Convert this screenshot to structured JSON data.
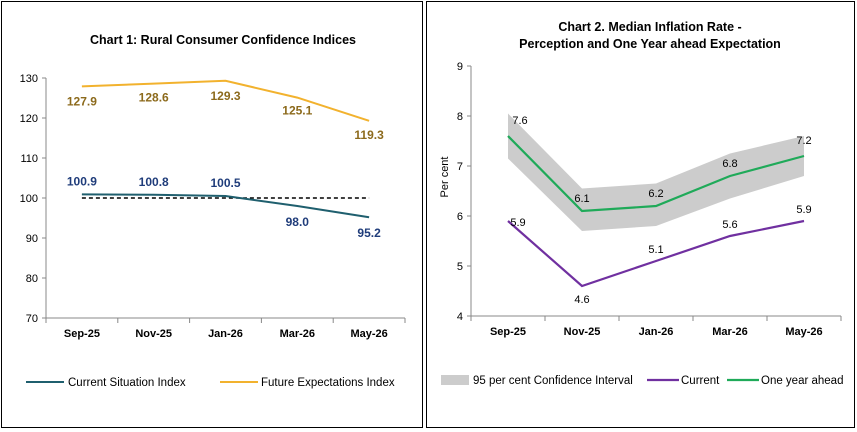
{
  "chart_data": [
    {
      "type": "line",
      "title": "Chart 1: Rural Consumer Confidence Indices",
      "categories": [
        "Sep-25",
        "Nov-25",
        "Jan-26",
        "Mar-26",
        "May-26"
      ],
      "ylim": [
        70,
        130
      ],
      "yticks": [
        70,
        80,
        90,
        100,
        110,
        120,
        130
      ],
      "reference_line": 100,
      "grid": false,
      "legend_position": "bottom",
      "series": [
        {
          "name": "Current Situation Index",
          "values": [
            100.9,
            100.8,
            100.5,
            98.0,
            95.2
          ],
          "labels": [
            "100.9",
            "100.8",
            "100.5",
            "98.0",
            "95.2"
          ],
          "color": "#1f5f6e",
          "label_color": "#1f3c7a"
        },
        {
          "name": "Future Expectations Index",
          "values": [
            127.9,
            128.6,
            129.3,
            125.1,
            119.3
          ],
          "labels": [
            "127.9",
            "128.6",
            "129.3",
            "125.1",
            "119.3"
          ],
          "color": "#f2b22e",
          "label_color": "#8c6a1c"
        }
      ]
    },
    {
      "type": "line",
      "title": "Chart 2. Median Inflation Rate -",
      "subtitle": "Perception and One Year ahead Expectation",
      "ylabel": "Per cent",
      "categories": [
        "Sep-25",
        "Nov-25",
        "Jan-26",
        "Mar-26",
        "May-26"
      ],
      "ylim": [
        4,
        9
      ],
      "yticks": [
        4,
        5,
        6,
        7,
        8,
        9
      ],
      "grid": false,
      "legend_position": "bottom",
      "band": {
        "name": "95 per cent Confidence Interval",
        "lower": [
          7.15,
          5.7,
          5.8,
          6.35,
          6.8
        ],
        "upper": [
          8.05,
          6.55,
          6.65,
          7.25,
          7.6
        ],
        "color": "#cccccc"
      },
      "series": [
        {
          "name": "Current",
          "values": [
            5.9,
            4.6,
            5.1,
            5.6,
            5.9
          ],
          "labels": [
            "5.9",
            "4.6",
            "5.1",
            "5.6",
            "5.9"
          ],
          "color": "#7030a0"
        },
        {
          "name": "One year ahead",
          "values": [
            7.6,
            6.1,
            6.2,
            6.8,
            7.2
          ],
          "labels": [
            "7.6",
            "6.1",
            "6.2",
            "6.8",
            "7.2"
          ],
          "color": "#1faa59"
        }
      ]
    }
  ]
}
